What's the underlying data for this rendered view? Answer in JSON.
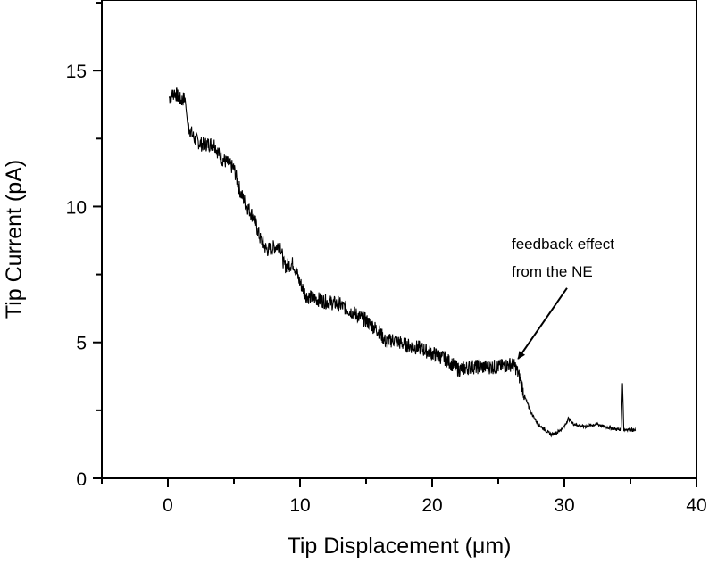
{
  "chart_data": {
    "type": "line",
    "title": "",
    "xlabel": "Tip Displacement (μm)",
    "ylabel": "Tip Current (pA)",
    "xlim": [
      -5,
      40
    ],
    "ylim": [
      0,
      17.6
    ],
    "xticks": [
      0,
      10,
      20,
      30,
      40
    ],
    "xtick_labels": [
      "0",
      "10",
      "20",
      "30",
      "40"
    ],
    "yticks": [
      0,
      5,
      10,
      15
    ],
    "ytick_labels": [
      "0",
      "5",
      "10",
      "15"
    ],
    "grid": false,
    "line_color": "#000000",
    "series": [
      {
        "x": [
          0.1,
          0.5,
          1.0,
          1.3,
          1.5,
          2.0,
          2.5,
          3.5,
          4.0,
          4.5,
          5.0,
          5.5,
          6.0,
          6.5,
          7.0,
          7.5,
          8.0,
          8.5,
          8.8,
          9.5,
          10.0,
          10.5,
          12,
          13,
          14,
          15,
          16,
          16.5,
          17,
          18,
          19,
          20,
          21,
          22,
          23,
          24,
          25,
          26,
          26.3,
          26.7,
          27,
          27.5,
          28,
          28.5,
          29,
          29.5,
          30,
          30.3,
          30.7,
          31.5,
          32.5,
          33,
          34,
          34.3,
          34.4,
          34.5,
          35,
          35.4
        ],
        "y": [
          14.0,
          14.2,
          13.9,
          14.0,
          13.0,
          12.5,
          12.3,
          12.3,
          11.8,
          11.6,
          11.4,
          10.5,
          10.0,
          9.6,
          8.8,
          8.4,
          8.5,
          8.6,
          7.8,
          7.9,
          7.2,
          6.7,
          6.5,
          6.4,
          6.1,
          5.8,
          5.4,
          5.0,
          5.1,
          4.9,
          4.8,
          4.6,
          4.4,
          4.0,
          4.1,
          4.1,
          4.1,
          4.2,
          4.1,
          3.6,
          3.0,
          2.4,
          2.0,
          1.8,
          1.6,
          1.7,
          1.9,
          2.2,
          2.0,
          1.9,
          2.0,
          1.9,
          1.8,
          1.8,
          3.5,
          1.8,
          1.8,
          1.75
        ]
      }
    ],
    "annotations": [
      {
        "lines": [
          "feedback effect",
          "from the NE"
        ],
        "arrow_tail": [
          30.2,
          7.0
        ],
        "arrow_head": [
          26.5,
          4.4
        ]
      }
    ]
  }
}
